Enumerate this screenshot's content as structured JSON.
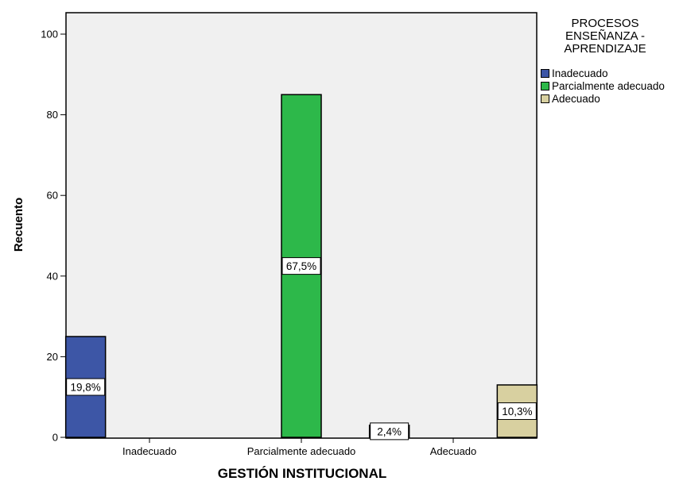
{
  "chart_data": {
    "type": "bar",
    "xlabel": "GESTIÓN INSTITUCIONAL",
    "ylabel": "Recuento",
    "ylim": [
      0,
      100
    ],
    "yticks": [
      0,
      20,
      40,
      60,
      80,
      100
    ],
    "categories": [
      "Inadecuado",
      "Parcialmente adecuado",
      "Adecuado"
    ],
    "legend_title": "PROCESOS ENSEÑANZA - APRENDIZAJE",
    "legend_position": "right",
    "plot_background": "#f0f0f0",
    "series": [
      {
        "name": "Inadecuado",
        "color": "#3d56a6",
        "values": [
          25,
          null,
          3
        ],
        "labels": [
          "19,8%",
          null,
          "2,4%"
        ]
      },
      {
        "name": "Parcialmente adecuado",
        "color": "#2db84a",
        "values": [
          null,
          85,
          null
        ],
        "labels": [
          null,
          "67,5%",
          null
        ]
      },
      {
        "name": "Adecuado",
        "color": "#d8d0a0",
        "values": [
          null,
          null,
          13
        ],
        "labels": [
          null,
          null,
          "10,3%"
        ]
      }
    ]
  }
}
